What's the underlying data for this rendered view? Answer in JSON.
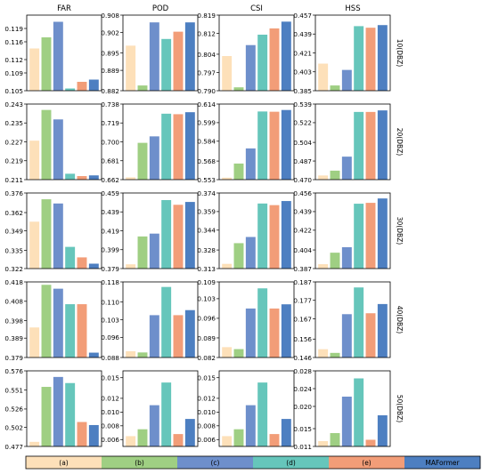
{
  "colors": {
    "a": "#fde0b9",
    "b": "#9fcf83",
    "c": "#6e8fcb",
    "d": "#66c6bb",
    "e": "#f29d78",
    "MAFormer": "#4d7fc1"
  },
  "legend": [
    "(a)",
    "(b)",
    "(c)",
    "(d)",
    "(e)",
    "MAFormer"
  ],
  "column_titles": [
    "FAR",
    "POD",
    "CSI",
    "HSS"
  ],
  "row_labels": [
    "10(DBZ)",
    "20(DBZ)",
    "30(DBZ)",
    "40(DBZ)",
    "50(DBZ)"
  ],
  "chart_data": [
    {
      "type": "bar",
      "title": "FAR",
      "ylabel": "10(DBZ)",
      "categories": [
        "(a)",
        "(b)",
        "(c)",
        "(d)",
        "(e)",
        "MAFormer"
      ],
      "values": [
        0.1145,
        0.117,
        0.1205,
        0.1055,
        0.107,
        0.1075
      ],
      "ylim": [
        0.105,
        0.122
      ],
      "yticks": [
        "0.105",
        "0.109",
        "0.112",
        "0.116",
        "0.119"
      ]
    },
    {
      "type": "bar",
      "title": "POD",
      "ylabel": "10(DBZ)",
      "categories": [
        "(a)",
        "(b)",
        "(c)",
        "(d)",
        "(e)",
        "MAFormer"
      ],
      "values": [
        0.8975,
        0.8838,
        0.9055,
        0.8998,
        0.9023,
        0.9055
      ],
      "ylim": [
        0.882,
        0.908
      ],
      "yticks": [
        "0.882",
        "0.889",
        "0.895",
        "0.902",
        "0.908"
      ]
    },
    {
      "type": "bar",
      "title": "CSI",
      "ylabel": "10(DBZ)",
      "categories": [
        "(a)",
        "(b)",
        "(c)",
        "(d)",
        "(e)",
        "MAFormer"
      ],
      "values": [
        0.8033,
        0.7913,
        0.8075,
        0.8115,
        0.8139,
        0.8165
      ],
      "ylim": [
        0.79,
        0.819
      ],
      "yticks": [
        "0.790",
        "0.797",
        "0.804",
        "0.812",
        "0.819"
      ]
    },
    {
      "type": "bar",
      "title": "HSS",
      "ylabel": "10(DBZ)",
      "categories": [
        "(a)",
        "(b)",
        "(c)",
        "(d)",
        "(e)",
        "MAFormer"
      ],
      "values": [
        0.4108,
        0.39,
        0.4048,
        0.4465,
        0.445,
        0.4475
      ],
      "ylim": [
        0.385,
        0.457
      ],
      "yticks": [
        "0.385",
        "0.403",
        "0.421",
        "0.439",
        "0.457"
      ]
    },
    {
      "type": "bar",
      "title": "FAR",
      "ylabel": "20(DBZ)",
      "categories": [
        "(a)",
        "(b)",
        "(c)",
        "(d)",
        "(e)",
        "MAFormer"
      ],
      "values": [
        0.2275,
        0.2405,
        0.2365,
        0.2135,
        0.2125,
        0.2128
      ],
      "ylim": [
        0.211,
        0.243
      ],
      "yticks": [
        "0.211",
        "0.219",
        "0.227",
        "0.235",
        "0.243"
      ]
    },
    {
      "type": "bar",
      "title": "POD",
      "ylabel": "20(DBZ)",
      "categories": [
        "(a)",
        "(b)",
        "(c)",
        "(d)",
        "(e)",
        "MAFormer"
      ],
      "values": [
        0.6643,
        0.699,
        0.7055,
        0.7283,
        0.7278,
        0.7298
      ],
      "ylim": [
        0.662,
        0.738
      ],
      "yticks": [
        "0.662",
        "0.681",
        "0.700",
        "0.719",
        "0.738"
      ]
    },
    {
      "type": "bar",
      "title": "CSI",
      "ylabel": "20(DBZ)",
      "categories": [
        "(a)",
        "(b)",
        "(c)",
        "(d)",
        "(e)",
        "MAFormer"
      ],
      "values": [
        0.5546,
        0.566,
        0.5782,
        0.608,
        0.6078,
        0.6092
      ],
      "ylim": [
        0.553,
        0.614
      ],
      "yticks": [
        "0.553",
        "0.568",
        "0.584",
        "0.599",
        "0.614"
      ]
    },
    {
      "type": "bar",
      "title": "HSS",
      "ylabel": "20(DBZ)",
      "categories": [
        "(a)",
        "(b)",
        "(c)",
        "(d)",
        "(e)",
        "MAFormer"
      ],
      "values": [
        0.4738,
        0.4782,
        0.491,
        0.5318,
        0.5318,
        0.5332
      ],
      "ylim": [
        0.47,
        0.539
      ],
      "yticks": [
        "0.470",
        "0.487",
        "0.504",
        "0.522",
        "0.539"
      ]
    },
    {
      "type": "bar",
      "title": "FAR",
      "ylabel": "30(DBZ)",
      "categories": [
        "(a)",
        "(b)",
        "(c)",
        "(d)",
        "(e)",
        "MAFormer"
      ],
      "values": [
        0.3555,
        0.3715,
        0.3685,
        0.3375,
        0.33,
        0.3255
      ],
      "ylim": [
        0.322,
        0.376
      ],
      "yticks": [
        "0.322",
        "0.335",
        "0.349",
        "0.362",
        "0.376"
      ]
    },
    {
      "type": "bar",
      "title": "POD",
      "ylabel": "30(DBZ)",
      "categories": [
        "(a)",
        "(b)",
        "(c)",
        "(d)",
        "(e)",
        "MAFormer"
      ],
      "values": [
        0.3835,
        0.413,
        0.416,
        0.4515,
        0.4465,
        0.4495
      ],
      "ylim": [
        0.379,
        0.459
      ],
      "yticks": [
        "0.379",
        "0.399",
        "0.419",
        "0.439",
        "0.459"
      ]
    },
    {
      "type": "bar",
      "title": "CSI",
      "ylabel": "30(DBZ)",
      "categories": [
        "(a)",
        "(b)",
        "(c)",
        "(d)",
        "(e)",
        "MAFormer"
      ],
      "values": [
        0.3168,
        0.3335,
        0.3385,
        0.3655,
        0.3642,
        0.3675
      ],
      "ylim": [
        0.313,
        0.374
      ],
      "yticks": [
        "0.313",
        "0.328",
        "0.344",
        "0.359",
        "0.374"
      ]
    },
    {
      "type": "bar",
      "title": "HSS",
      "ylabel": "30(DBZ)",
      "categories": [
        "(a)",
        "(b)",
        "(c)",
        "(d)",
        "(e)",
        "MAFormer"
      ],
      "values": [
        0.391,
        0.4015,
        0.4065,
        0.4462,
        0.447,
        0.451
      ],
      "ylim": [
        0.387,
        0.456
      ],
      "yticks": [
        "0.387",
        "0.404",
        "0.422",
        "0.439",
        "0.456"
      ]
    },
    {
      "type": "bar",
      "title": "FAR",
      "ylabel": "40(DBZ)",
      "categories": [
        "(a)",
        "(b)",
        "(c)",
        "(d)",
        "(e)",
        "MAFormer"
      ],
      "values": [
        0.3945,
        0.4165,
        0.4145,
        0.4065,
        0.4065,
        0.3815
      ],
      "ylim": [
        0.379,
        0.418
      ],
      "yticks": [
        "0.379",
        "0.389",
        "0.398",
        "0.408",
        "0.418"
      ]
    },
    {
      "type": "bar",
      "title": "POD",
      "ylabel": "40(DBZ)",
      "categories": [
        "(a)",
        "(b)",
        "(c)",
        "(d)",
        "(e)",
        "MAFormer"
      ],
      "values": [
        0.0905,
        0.09,
        0.1048,
        0.116,
        0.1048,
        0.1068
      ],
      "ylim": [
        0.088,
        0.118
      ],
      "yticks": [
        "0.088",
        "0.096",
        "0.103",
        "0.110",
        "0.118"
      ]
    },
    {
      "type": "bar",
      "title": "CSI",
      "ylabel": "40(DBZ)",
      "categories": [
        "(a)",
        "(b)",
        "(c)",
        "(d)",
        "(e)",
        "MAFormer"
      ],
      "values": [
        0.0857,
        0.085,
        0.0995,
        0.1067,
        0.0995,
        0.101
      ],
      "ylim": [
        0.082,
        0.109
      ],
      "yticks": [
        "0.082",
        "0.089",
        "0.096",
        "0.103",
        "0.109"
      ]
    },
    {
      "type": "bar",
      "title": "HSS",
      "ylabel": "40(DBZ)",
      "categories": [
        "(a)",
        "(b)",
        "(c)",
        "(d)",
        "(e)",
        "MAFormer"
      ],
      "values": [
        0.1505,
        0.1485,
        0.1695,
        0.184,
        0.17,
        0.175
      ],
      "ylim": [
        0.146,
        0.187
      ],
      "yticks": [
        "0.146",
        "0.156",
        "0.167",
        "0.177",
        "0.187"
      ]
    },
    {
      "type": "bar",
      "title": "FAR",
      "ylabel": "50(DBZ)",
      "categories": [
        "(a)",
        "(b)",
        "(c)",
        "(d)",
        "(e)",
        "MAFormer"
      ],
      "values": [
        0.483,
        0.555,
        0.568,
        0.56,
        0.509,
        0.505
      ],
      "ylim": [
        0.477,
        0.576
      ],
      "yticks": [
        "0.477",
        "0.502",
        "0.526",
        "0.551",
        "0.576"
      ]
    },
    {
      "type": "bar",
      "title": "POD",
      "ylabel": "50(DBZ)",
      "categories": [
        "(a)",
        "(b)",
        "(c)",
        "(d)",
        "(e)",
        "MAFormer"
      ],
      "values": [
        0.0065,
        0.0075,
        0.011,
        0.0143,
        0.0068,
        0.009
      ],
      "ylim": [
        0.005,
        0.016
      ],
      "yticks": [
        "0.006",
        "0.008",
        "0.010",
        "0.012",
        "0.015"
      ]
    },
    {
      "type": "bar",
      "title": "CSI",
      "ylabel": "50(DBZ)",
      "categories": [
        "(a)",
        "(b)",
        "(c)",
        "(d)",
        "(e)",
        "MAFormer"
      ],
      "values": [
        0.0065,
        0.0075,
        0.011,
        0.0143,
        0.0068,
        0.009
      ],
      "ylim": [
        0.005,
        0.016
      ],
      "yticks": [
        "0.006",
        "0.008",
        "0.010",
        "0.012",
        "0.015"
      ]
    },
    {
      "type": "bar",
      "title": "HSS",
      "ylabel": "50(DBZ)",
      "categories": [
        "(a)",
        "(b)",
        "(c)",
        "(d)",
        "(e)",
        "MAFormer"
      ],
      "values": [
        0.0122,
        0.014,
        0.0222,
        0.0263,
        0.0125,
        0.018
      ],
      "ylim": [
        0.011,
        0.028
      ],
      "yticks": [
        "0.011",
        "0.015",
        "0.020",
        "0.024",
        "0.028"
      ]
    }
  ]
}
